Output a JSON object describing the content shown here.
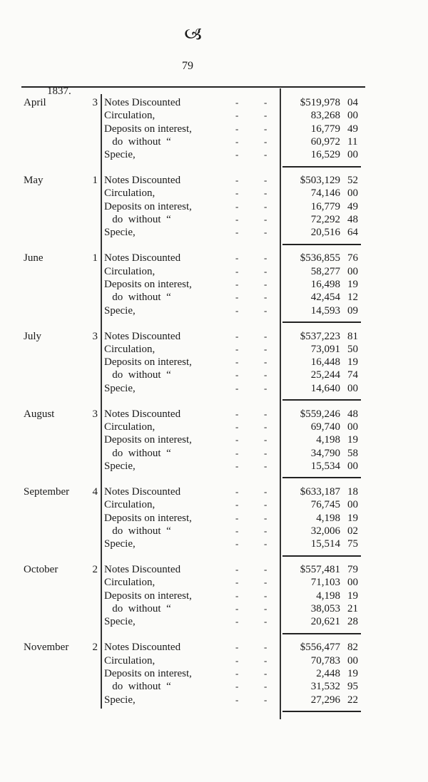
{
  "page": {
    "page_number": "79",
    "year": "1837."
  },
  "sections": [
    {
      "month": "April",
      "day": "3",
      "rows": [
        {
          "label": "Notes Discounted",
          "dollars": "$519,978",
          "cents": "04"
        },
        {
          "label": "Circulation,",
          "dollars": "83,268",
          "cents": "00"
        },
        {
          "label": "Deposits on interest,",
          "dollars": "16,779",
          "cents": "49"
        },
        {
          "label": "   do  without  “",
          "dollars": "60,972",
          "cents": "11"
        },
        {
          "label": "Specie,",
          "dollars": "16,529",
          "cents": "00"
        }
      ]
    },
    {
      "month": "May",
      "day": "1",
      "rows": [
        {
          "label": "Notes Discounted",
          "dollars": "$503,129",
          "cents": "52"
        },
        {
          "label": "Circulation,",
          "dollars": "74,146",
          "cents": "00"
        },
        {
          "label": "Deposits on interest,",
          "dollars": "16,779",
          "cents": "49"
        },
        {
          "label": "   do  without  “",
          "dollars": "72,292",
          "cents": "48"
        },
        {
          "label": "Specie,",
          "dollars": "20,516",
          "cents": "64"
        }
      ]
    },
    {
      "month": "June",
      "day": "1",
      "rows": [
        {
          "label": "Notes Discounted",
          "dollars": "$536,855",
          "cents": "76"
        },
        {
          "label": "Circulation,",
          "dollars": "58,277",
          "cents": "00"
        },
        {
          "label": "Deposits on interest,",
          "dollars": "16,498",
          "cents": "19"
        },
        {
          "label": "   do  without  “",
          "dollars": "42,454",
          "cents": "12"
        },
        {
          "label": "Specie,",
          "dollars": "14,593",
          "cents": "09"
        }
      ]
    },
    {
      "month": "July",
      "day": "3",
      "rows": [
        {
          "label": "Notes Discounted",
          "dollars": "$537,223",
          "cents": "81"
        },
        {
          "label": "Circulation,",
          "dollars": "73,091",
          "cents": "50"
        },
        {
          "label": "Deposits on interest,",
          "dollars": "16,448",
          "cents": "19"
        },
        {
          "label": "   do  without  “",
          "dollars": "25,244",
          "cents": "74"
        },
        {
          "label": "Specie,",
          "dollars": "14,640",
          "cents": "00"
        }
      ]
    },
    {
      "month": "August",
      "day": "3",
      "rows": [
        {
          "label": "Notes Discounted",
          "dollars": "$559,246",
          "cents": "48"
        },
        {
          "label": "Circulation,",
          "dollars": "69,740",
          "cents": "00"
        },
        {
          "label": "Deposits on interest,",
          "dollars": "4,198",
          "cents": "19"
        },
        {
          "label": "   do  without  “",
          "dollars": "34,790",
          "cents": "58"
        },
        {
          "label": "Specie,",
          "dollars": "15,534",
          "cents": "00"
        }
      ]
    },
    {
      "month": "September",
      "day": "4",
      "rows": [
        {
          "label": "Notes Discounted",
          "dollars": "$633,187",
          "cents": "18"
        },
        {
          "label": "Circulation,",
          "dollars": "76,745",
          "cents": "00"
        },
        {
          "label": "Deposits on interest,",
          "dollars": "4,198",
          "cents": "19"
        },
        {
          "label": "   do  without  “",
          "dollars": "32,006",
          "cents": "02"
        },
        {
          "label": "Specie,",
          "dollars": "15,514",
          "cents": "75"
        }
      ]
    },
    {
      "month": "October",
      "day": "2",
      "rows": [
        {
          "label": "Notes Discounted",
          "dollars": "$557,481",
          "cents": "79"
        },
        {
          "label": "Circulation,",
          "dollars": "71,103",
          "cents": "00"
        },
        {
          "label": "Deposits on interest,",
          "dollars": "4,198",
          "cents": "19"
        },
        {
          "label": "   do  without  “",
          "dollars": "38,053",
          "cents": "21"
        },
        {
          "label": "Specie,",
          "dollars": "20,621",
          "cents": "28"
        }
      ]
    },
    {
      "month": "November",
      "day": "2",
      "rows": [
        {
          "label": "Notes Discounted",
          "dollars": "$556,477",
          "cents": "82"
        },
        {
          "label": "Circulation,",
          "dollars": "70,783",
          "cents": "00"
        },
        {
          "label": "Deposits on interest,",
          "dollars": "2,448",
          "cents": "19"
        },
        {
          "label": "   do  without  “",
          "dollars": "31,532",
          "cents": "95"
        },
        {
          "label": "Specie,",
          "dollars": "27,296",
          "cents": "22"
        }
      ]
    }
  ]
}
